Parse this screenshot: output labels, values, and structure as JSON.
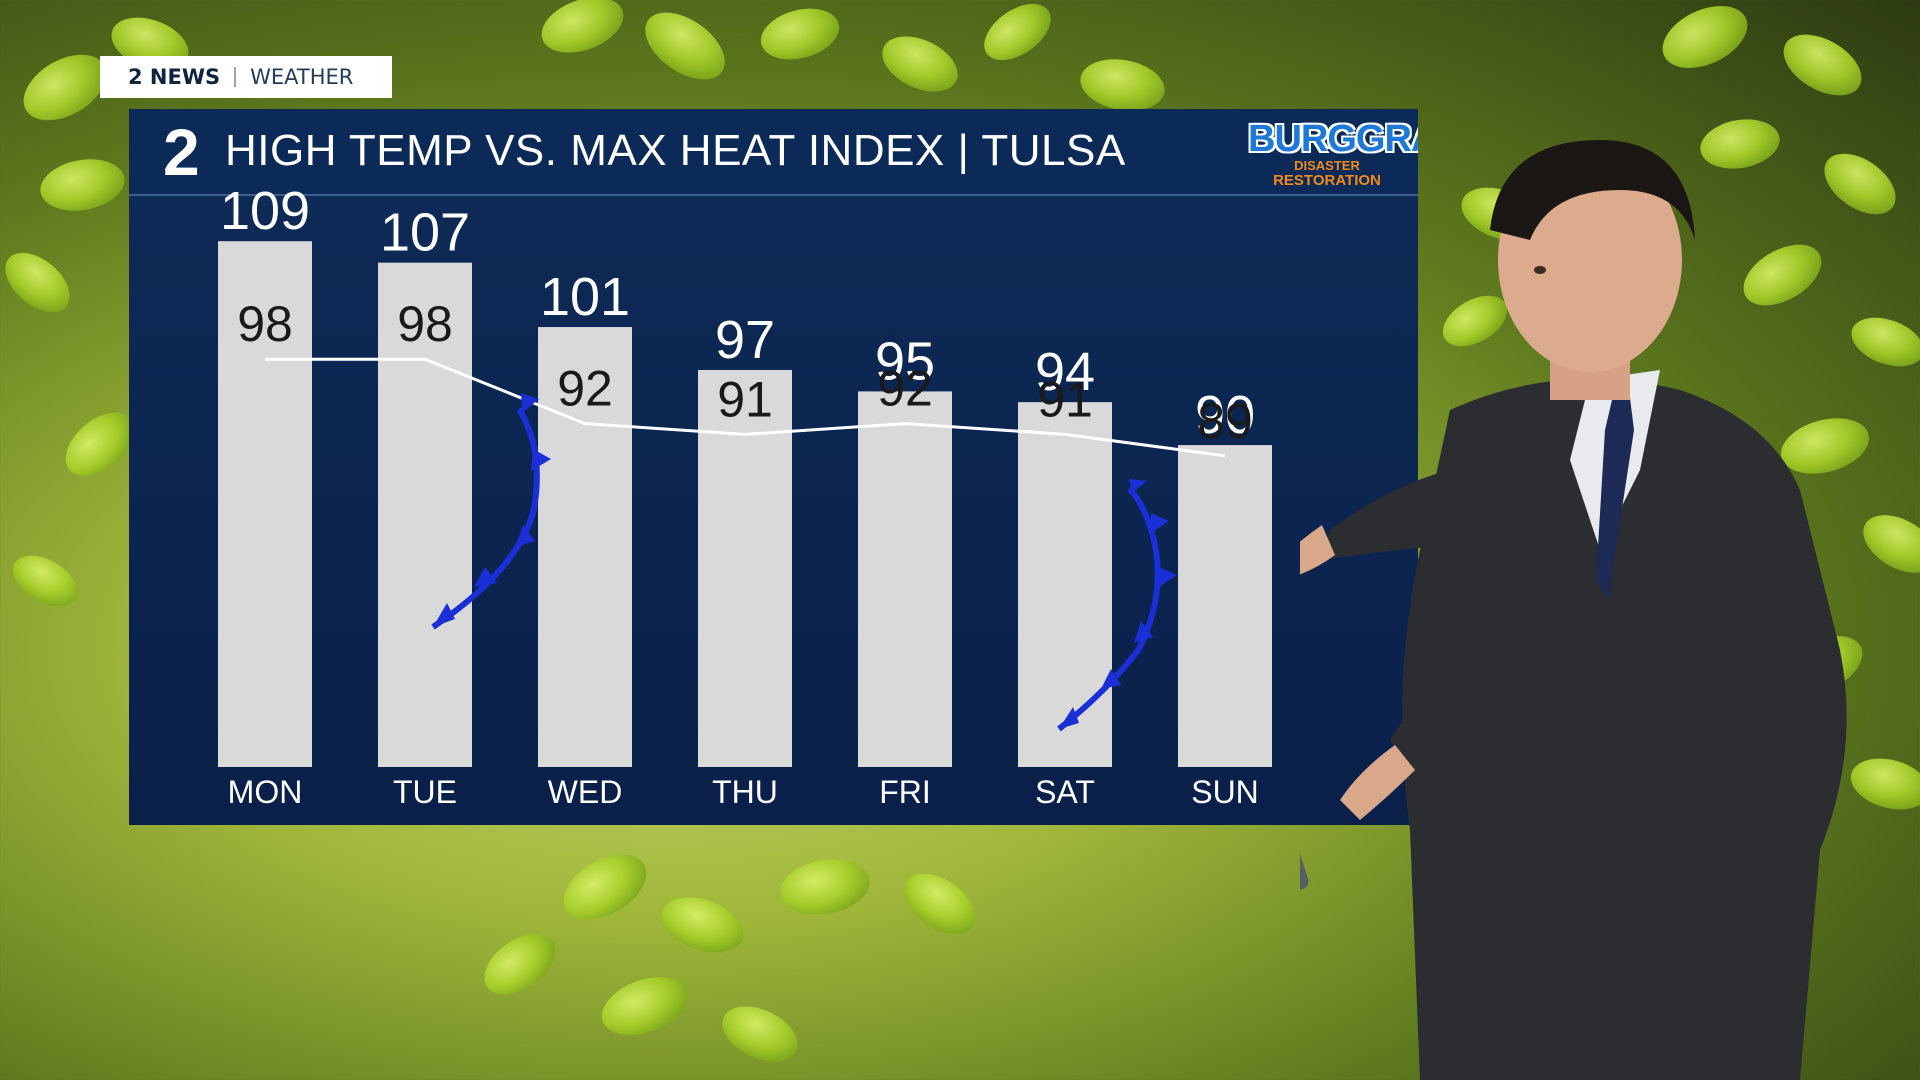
{
  "station": {
    "name": "2 NEWS",
    "section": "WEATHER",
    "logo": "2"
  },
  "title": "HIGH TEMP VS. MAX HEAT INDEX | TULSA",
  "sponsor": {
    "name": "BURGGRAF",
    "line2": "DISASTER",
    "line3": "RESTORATION"
  },
  "colors": {
    "panel": "#0b2450",
    "bar": "#d9d9d9",
    "front": "#1a2fd6",
    "line": "#ffffff"
  },
  "chart_data": {
    "type": "bar",
    "categories": [
      "MON",
      "TUE",
      "WED",
      "THU",
      "FRI",
      "SAT",
      "SUN"
    ],
    "series": [
      {
        "values": [
          109,
          107,
          101,
          97,
          95,
          94,
          90
        ]
      },
      {
        "values": [
          98,
          98,
          92,
          91,
          92,
          91,
          89
        ]
      }
    ],
    "ylim": [
      60,
      112
    ]
  }
}
